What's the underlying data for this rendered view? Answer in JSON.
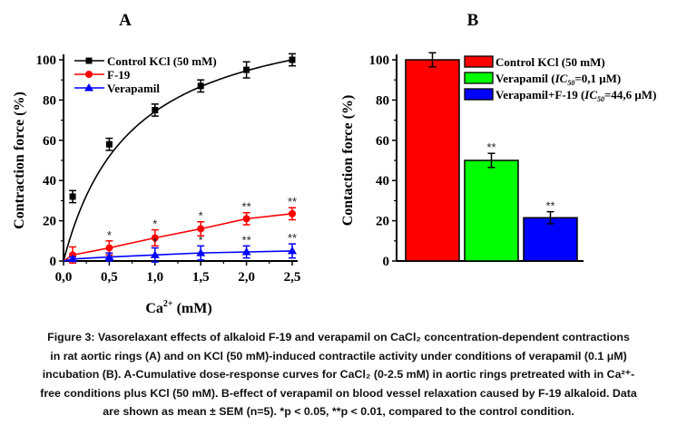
{
  "chart_data": [
    {
      "type": "line",
      "title": "A",
      "xlabel": "Ca2+ (mM)",
      "xlabel_base": "Ca",
      "xlabel_sup": "2+",
      "xlabel_unit": " (mM)",
      "ylabel": "Contraction force (%)",
      "xlim": [
        0,
        2.5
      ],
      "ylim": [
        0,
        100
      ],
      "xticks": [
        "0,0",
        "0,5",
        "1,0",
        "1,5",
        "2,0",
        "2,5"
      ],
      "xtick_values": [
        0,
        0.5,
        1.0,
        1.5,
        2.0,
        2.5
      ],
      "yticks": [
        "0",
        "20",
        "40",
        "60",
        "80",
        "100"
      ],
      "ytick_values": [
        0,
        20,
        40,
        60,
        80,
        100
      ],
      "legend_position": "top-left",
      "x": [
        0.1,
        0.5,
        1.0,
        1.5,
        2.0,
        2.5
      ],
      "series": [
        {
          "name": "Control KCl (50 mM)",
          "color": "#000000",
          "marker": "square",
          "values": [
            32,
            58,
            75,
            87,
            95,
            100
          ],
          "errors": [
            3,
            3,
            3,
            3,
            4,
            3
          ],
          "significance": [
            "",
            "",
            "",
            "",
            "",
            ""
          ]
        },
        {
          "name": "F-19",
          "color": "#ff0000",
          "marker": "circle",
          "values": [
            3,
            6.5,
            11.5,
            16,
            21,
            23.5
          ],
          "errors": [
            4,
            3.5,
            4,
            3.5,
            3,
            3
          ],
          "significance": [
            "",
            "*",
            "*",
            "*",
            "**",
            "**"
          ]
        },
        {
          "name": "Verapamil",
          "color": "#0000ff",
          "marker": "triangle",
          "values": [
            1,
            2,
            3,
            4,
            4.5,
            5
          ],
          "errors": [
            1,
            2,
            3.5,
            3.5,
            3,
            3.5
          ],
          "significance": [
            "",
            "",
            "*",
            "*",
            "**",
            "**"
          ]
        }
      ]
    },
    {
      "type": "bar",
      "title": "B",
      "ylabel": "Contaction force (%)",
      "ylim": [
        0,
        100
      ],
      "yticks": [
        "0",
        "20",
        "40",
        "60",
        "80",
        "100"
      ],
      "ytick_values": [
        0,
        20,
        40,
        60,
        80,
        100
      ],
      "legend_position": "top-right",
      "categories": [
        "Control KCl (50 mM)",
        "Verapamil (IC50=0,1 μM)",
        "Verapamil+F-19 (IC50=44,6 μM)"
      ],
      "legend": [
        {
          "pre": "Control KCl (50 mM)",
          "ic": "",
          "sub": "",
          "post": ""
        },
        {
          "pre": "Verapamil (",
          "ic": "IC",
          "sub": "50",
          "post": "=0,1 μM)"
        },
        {
          "pre": "Verapamil+F-19 (",
          "ic": "IC",
          "sub": "50",
          "post": "=44,6 μM)"
        }
      ],
      "values": [
        100,
        50,
        21.5
      ],
      "errors": [
        3.5,
        3.5,
        3
      ],
      "colors": [
        "#ff0000",
        "#00ff00",
        "#0000ff"
      ],
      "significance": [
        "",
        "**",
        "**"
      ]
    }
  ],
  "caption": {
    "lines": [
      "Figure 3: Vasorelaxant effects of alkaloid F-19 and verapamil on CaCl₂ concentration-dependent contractions",
      "in rat aortic rings (A) and on KCl (50 mM)-induced contractile activity under conditions of verapamil (0.1 μM)",
      "incubation (B). A-Cumulative dose-response curves for CaCl₂ (0-2.5 mM) in aortic rings pretreated with in Ca²⁺-",
      "free conditions plus KCl (50 mM). B-effect of verapamil on blood vessel relaxation caused by F-19 alkaloid. Data",
      "are shown as mean ± SEM (n=5). *p < 0.05, **p < 0.01, compared to the control condition."
    ]
  }
}
